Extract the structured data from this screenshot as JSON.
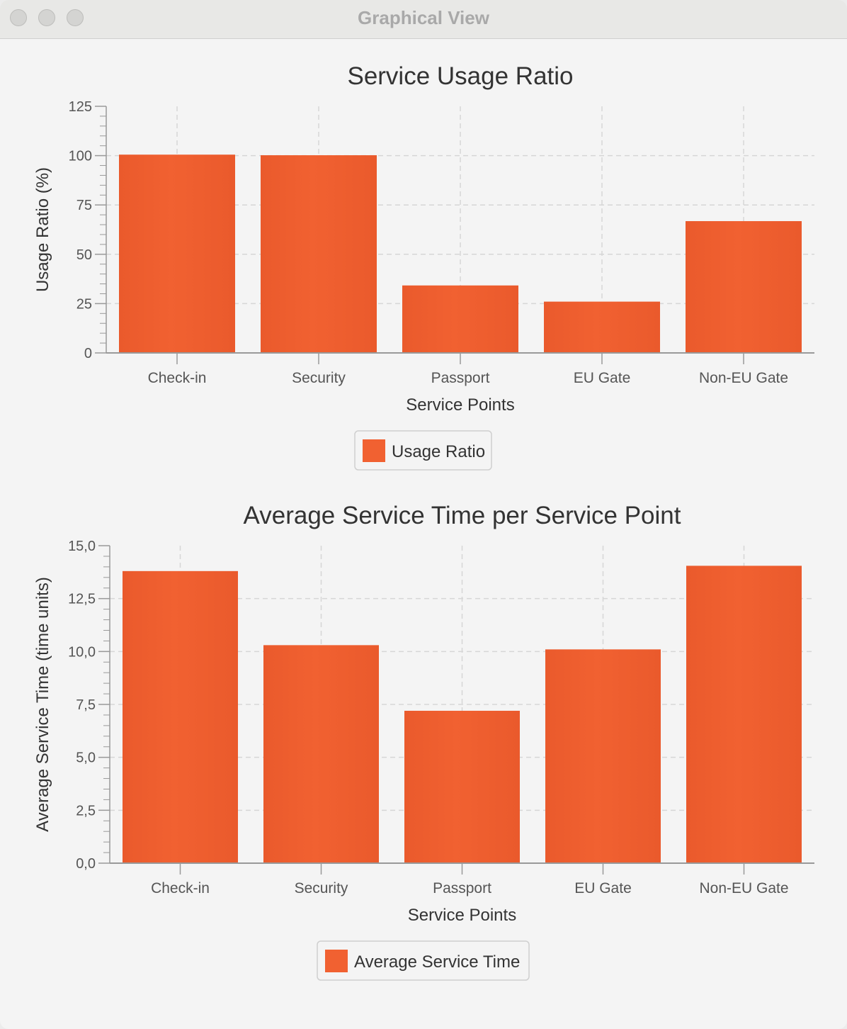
{
  "window": {
    "title": "Graphical View"
  },
  "theme": {
    "bar_color": "#ea5a2c",
    "bar_highlight": "#f16131",
    "grid_color": "#d6d6d6",
    "axis_color": "#999999",
    "text_color": "#333333",
    "tick_label_color": "#555555"
  },
  "chart_data": [
    {
      "type": "bar",
      "title": "Service Usage Ratio",
      "xlabel": "Service Points",
      "ylabel": "Usage Ratio (%)",
      "categories": [
        "Check-in",
        "Security",
        "Passport",
        "EU Gate",
        "Non-EU Gate"
      ],
      "series": [
        {
          "name": "Usage Ratio",
          "values": [
            100.5,
            100.2,
            34.2,
            26.0,
            66.8
          ]
        }
      ],
      "ylim": [
        0,
        125
      ],
      "yticks": [
        "0",
        "25",
        "50",
        "75",
        "100",
        "125"
      ],
      "grid": true,
      "legend_position": "bottom"
    },
    {
      "type": "bar",
      "title": "Average Service Time per Service Point",
      "xlabel": "Service Points",
      "ylabel": "Average Service Time (time units)",
      "categories": [
        "Check-in",
        "Security",
        "Passport",
        "EU Gate",
        "Non-EU Gate"
      ],
      "series": [
        {
          "name": "Average Service Time",
          "values": [
            13.8,
            10.3,
            7.2,
            10.1,
            14.05
          ]
        }
      ],
      "ylim": [
        0,
        15
      ],
      "yticks": [
        "0,0",
        "2,5",
        "5,0",
        "7,5",
        "10,0",
        "12,5",
        "15,0"
      ],
      "grid": true,
      "legend_position": "bottom"
    }
  ]
}
